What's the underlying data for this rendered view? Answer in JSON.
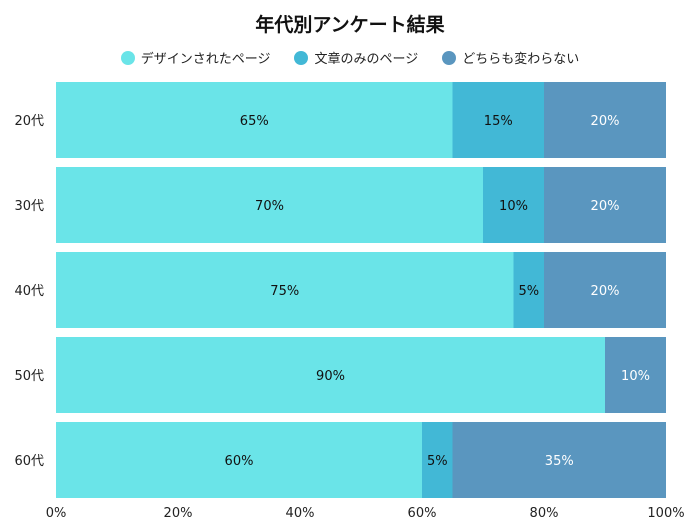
{
  "chart_data": {
    "type": "bar",
    "orientation": "horizontal",
    "stacked": true,
    "title": "年代別アンケート結果",
    "categories": [
      "20代",
      "30代",
      "40代",
      "50代",
      "60代"
    ],
    "series": [
      {
        "name": "デザインされたページ",
        "values": [
          65,
          70,
          75,
          90,
          60
        ],
        "color": "#6ae4e8",
        "label_color": "#111111"
      },
      {
        "name": "文章のみのページ",
        "values": [
          15,
          10,
          5,
          0,
          5
        ],
        "color": "#42b8d6",
        "label_color": "#111111"
      },
      {
        "name": "どちらも変わらない",
        "values": [
          20,
          20,
          20,
          10,
          35
        ],
        "color": "#5a96bf",
        "label_color": "#ffffff"
      }
    ],
    "xlim": [
      0,
      100
    ],
    "x_ticks": [
      "0%",
      "20%",
      "40%",
      "60%",
      "80%",
      "100%"
    ],
    "legend_position": "top",
    "grid": false
  }
}
